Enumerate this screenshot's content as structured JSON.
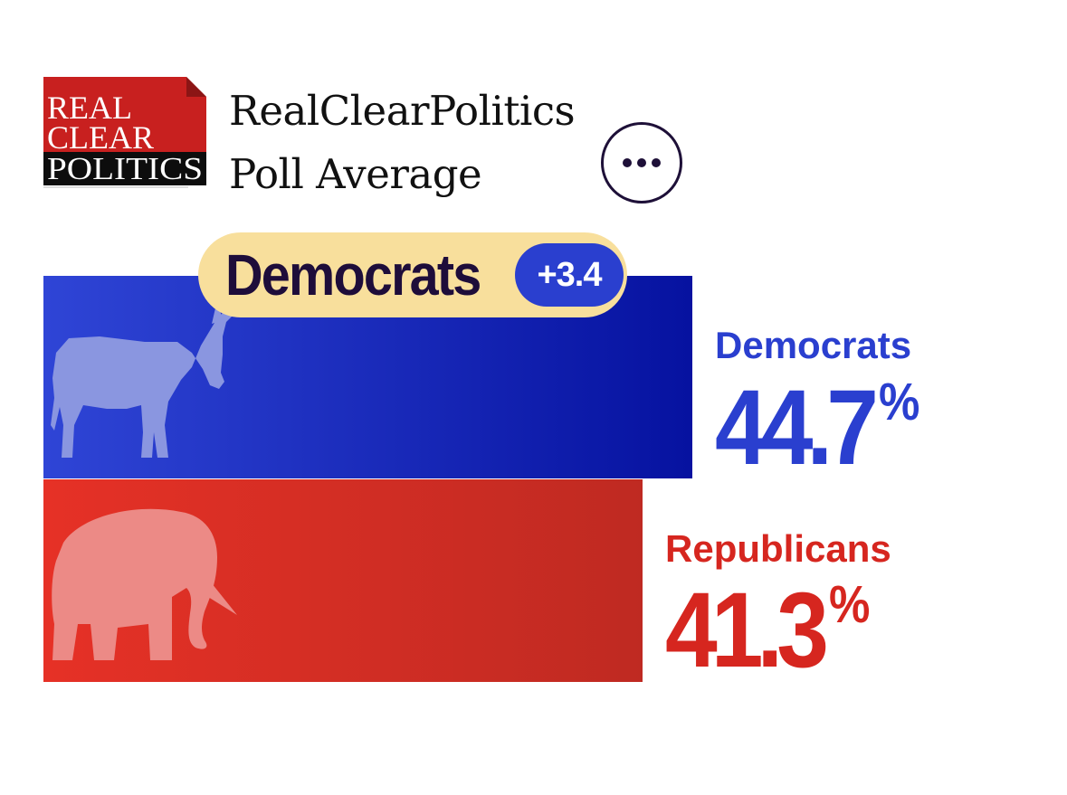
{
  "logo": {
    "line1": "REAL",
    "line2": "CLEAR",
    "line3": "POLITICS"
  },
  "header": {
    "title_line1": "RealClearPolitics",
    "title_line2": "Poll Average"
  },
  "more_button": {
    "icon": "more-horizontal-icon"
  },
  "leader": {
    "name": "Democrats",
    "margin": "+3.4"
  },
  "colors": {
    "dem_text": "#2a3fcf",
    "dem_bar_start": "#2f45d6",
    "dem_bar_end": "#0612a0",
    "rep_text": "#d6261f",
    "rep_bar_start": "#e63126",
    "rep_bar_end": "#bf2a22",
    "pill": "#f8df9c"
  },
  "chart_data": {
    "type": "bar",
    "orientation": "horizontal",
    "categories": [
      "Democrats",
      "Republicans"
    ],
    "values": [
      44.7,
      41.3
    ],
    "value_labels": [
      "44.7",
      "41.3"
    ],
    "unit": "%",
    "icons": [
      "donkey-icon",
      "elephant-icon"
    ]
  }
}
